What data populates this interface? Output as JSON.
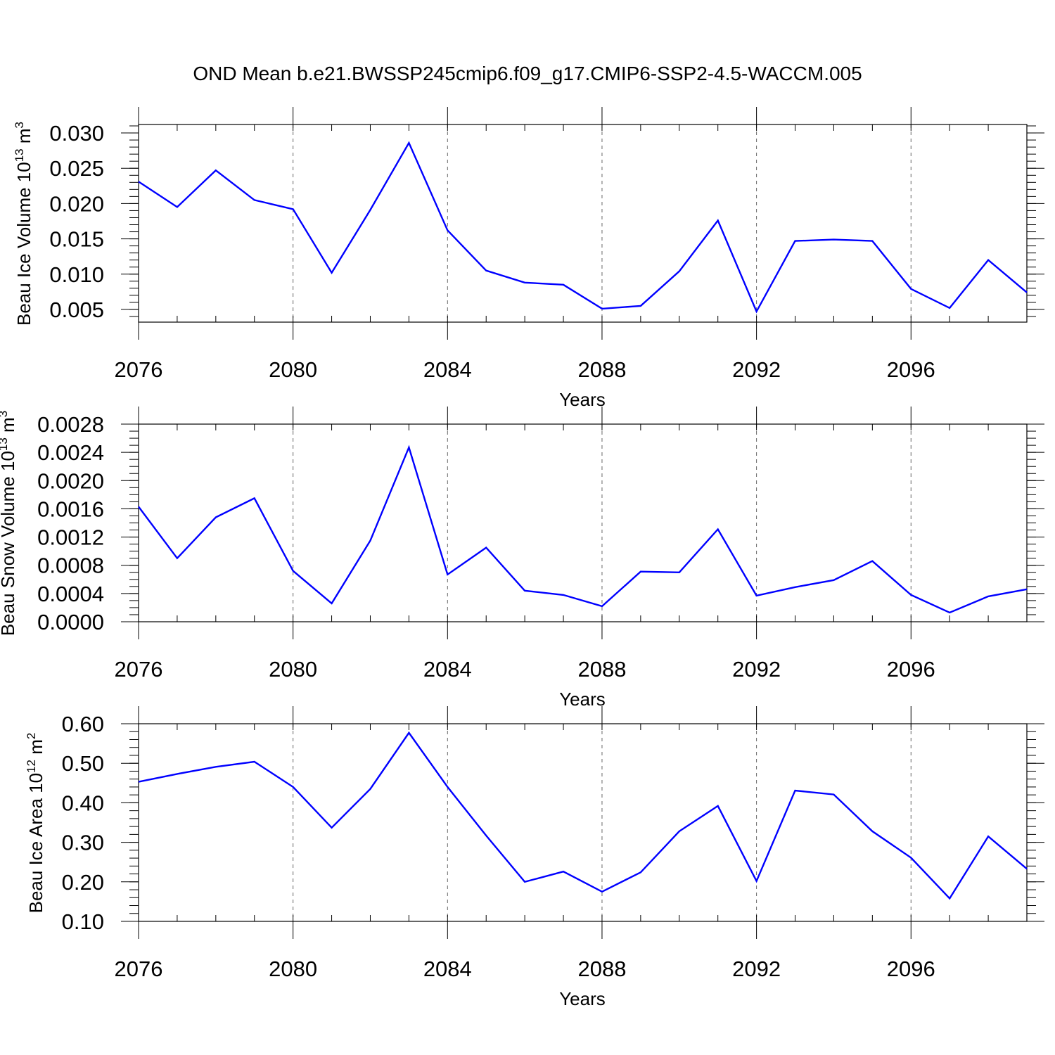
{
  "title": "OND Mean b.e21.BWSSP245cmip6.f09_g17.CMIP6-SSP2-4.5-WACCM.005",
  "chart_data": [
    {
      "type": "line",
      "ylabel_main": "Beau Ice Volume 10",
      "ylabel_exp": "13",
      "ylabel_unit": " m",
      "ylabel_unit_exp": "3",
      "xlabel": "Years",
      "xlim": [
        2076,
        2099
      ],
      "ylim": [
        0.0032,
        0.0312
      ],
      "ytick_values": [
        0.005,
        0.01,
        0.015,
        0.02,
        0.025,
        0.03
      ],
      "ytick_labels": [
        "0.005",
        "0.010",
        "0.015",
        "0.020",
        "0.025",
        "0.030"
      ],
      "yminor_step": 0.001,
      "xtick_values": [
        2076,
        2080,
        2084,
        2088,
        2092,
        2096
      ],
      "xtick_labels": [
        "2076",
        "2080",
        "2084",
        "2088",
        "2092",
        "2096"
      ],
      "grid_x": [
        2080,
        2084,
        2088,
        2092,
        2096
      ],
      "color": "#0000ff",
      "x": [
        2076,
        2077,
        2078,
        2079,
        2080,
        2081,
        2082,
        2083,
        2084,
        2085,
        2086,
        2087,
        2088,
        2089,
        2090,
        2091,
        2092,
        2093,
        2094,
        2095,
        2096,
        2097,
        2098,
        2099
      ],
      "y": [
        0.0231,
        0.0195,
        0.0247,
        0.0205,
        0.0192,
        0.0102,
        0.0191,
        0.0286,
        0.0162,
        0.0105,
        0.0088,
        0.0085,
        0.0051,
        0.0055,
        0.0104,
        0.0176,
        0.0047,
        0.0147,
        0.0149,
        0.0147,
        0.0079,
        0.0052,
        0.012,
        0.0074
      ]
    },
    {
      "type": "line",
      "ylabel_main": "Beau Snow Volume 10",
      "ylabel_exp": "13",
      "ylabel_unit": " m",
      "ylabel_unit_exp": "3",
      "xlabel": "Years",
      "xlim": [
        2076,
        2099
      ],
      "ylim": [
        0.0,
        0.0028
      ],
      "ytick_values": [
        0.0,
        0.0004,
        0.0008,
        0.0012,
        0.0016,
        0.002,
        0.0024,
        0.0028
      ],
      "ytick_labels": [
        "0.0000",
        "0.0004",
        "0.0008",
        "0.0012",
        "0.0016",
        "0.0020",
        "0.0024",
        "0.0028"
      ],
      "yminor_step": 0.0001,
      "xtick_values": [
        2076,
        2080,
        2084,
        2088,
        2092,
        2096
      ],
      "xtick_labels": [
        "2076",
        "2080",
        "2084",
        "2088",
        "2092",
        "2096"
      ],
      "grid_x": [
        2080,
        2084,
        2088,
        2092,
        2096
      ],
      "color": "#0000ff",
      "x": [
        2076,
        2077,
        2078,
        2079,
        2080,
        2081,
        2082,
        2083,
        2084,
        2085,
        2086,
        2087,
        2088,
        2089,
        2090,
        2091,
        2092,
        2093,
        2094,
        2095,
        2096,
        2097,
        2098,
        2099
      ],
      "y": [
        0.00163,
        0.0009,
        0.00148,
        0.00175,
        0.00072,
        0.00026,
        0.00115,
        0.00247,
        0.00067,
        0.00105,
        0.00044,
        0.00038,
        0.00022,
        0.00071,
        0.0007,
        0.00131,
        0.00037,
        0.00049,
        0.00059,
        0.00086,
        0.00038,
        0.00013,
        0.00036,
        0.00046
      ]
    },
    {
      "type": "line",
      "ylabel_main": "Beau Ice Area 10",
      "ylabel_exp": "12",
      "ylabel_unit": " m",
      "ylabel_unit_exp": "2",
      "xlabel": "Years",
      "xlim": [
        2076,
        2099
      ],
      "ylim": [
        0.1,
        0.6
      ],
      "ytick_values": [
        0.1,
        0.2,
        0.3,
        0.4,
        0.5,
        0.6
      ],
      "ytick_labels": [
        "0.10",
        "0.20",
        "0.30",
        "0.40",
        "0.50",
        "0.60"
      ],
      "yminor_step": 0.02,
      "xtick_values": [
        2076,
        2080,
        2084,
        2088,
        2092,
        2096
      ],
      "xtick_labels": [
        "2076",
        "2080",
        "2084",
        "2088",
        "2092",
        "2096"
      ],
      "grid_x": [
        2080,
        2084,
        2088,
        2092,
        2096
      ],
      "color": "#0000ff",
      "x": [
        2076,
        2077,
        2078,
        2079,
        2080,
        2081,
        2082,
        2083,
        2084,
        2085,
        2086,
        2087,
        2088,
        2089,
        2090,
        2091,
        2092,
        2093,
        2094,
        2095,
        2096,
        2097,
        2098,
        2099
      ],
      "y": [
        0.453,
        0.473,
        0.491,
        0.504,
        0.44,
        0.337,
        0.435,
        0.577,
        0.44,
        0.317,
        0.2,
        0.226,
        0.175,
        0.224,
        0.328,
        0.392,
        0.202,
        0.431,
        0.421,
        0.328,
        0.261,
        0.158,
        0.315,
        0.233
      ]
    }
  ]
}
